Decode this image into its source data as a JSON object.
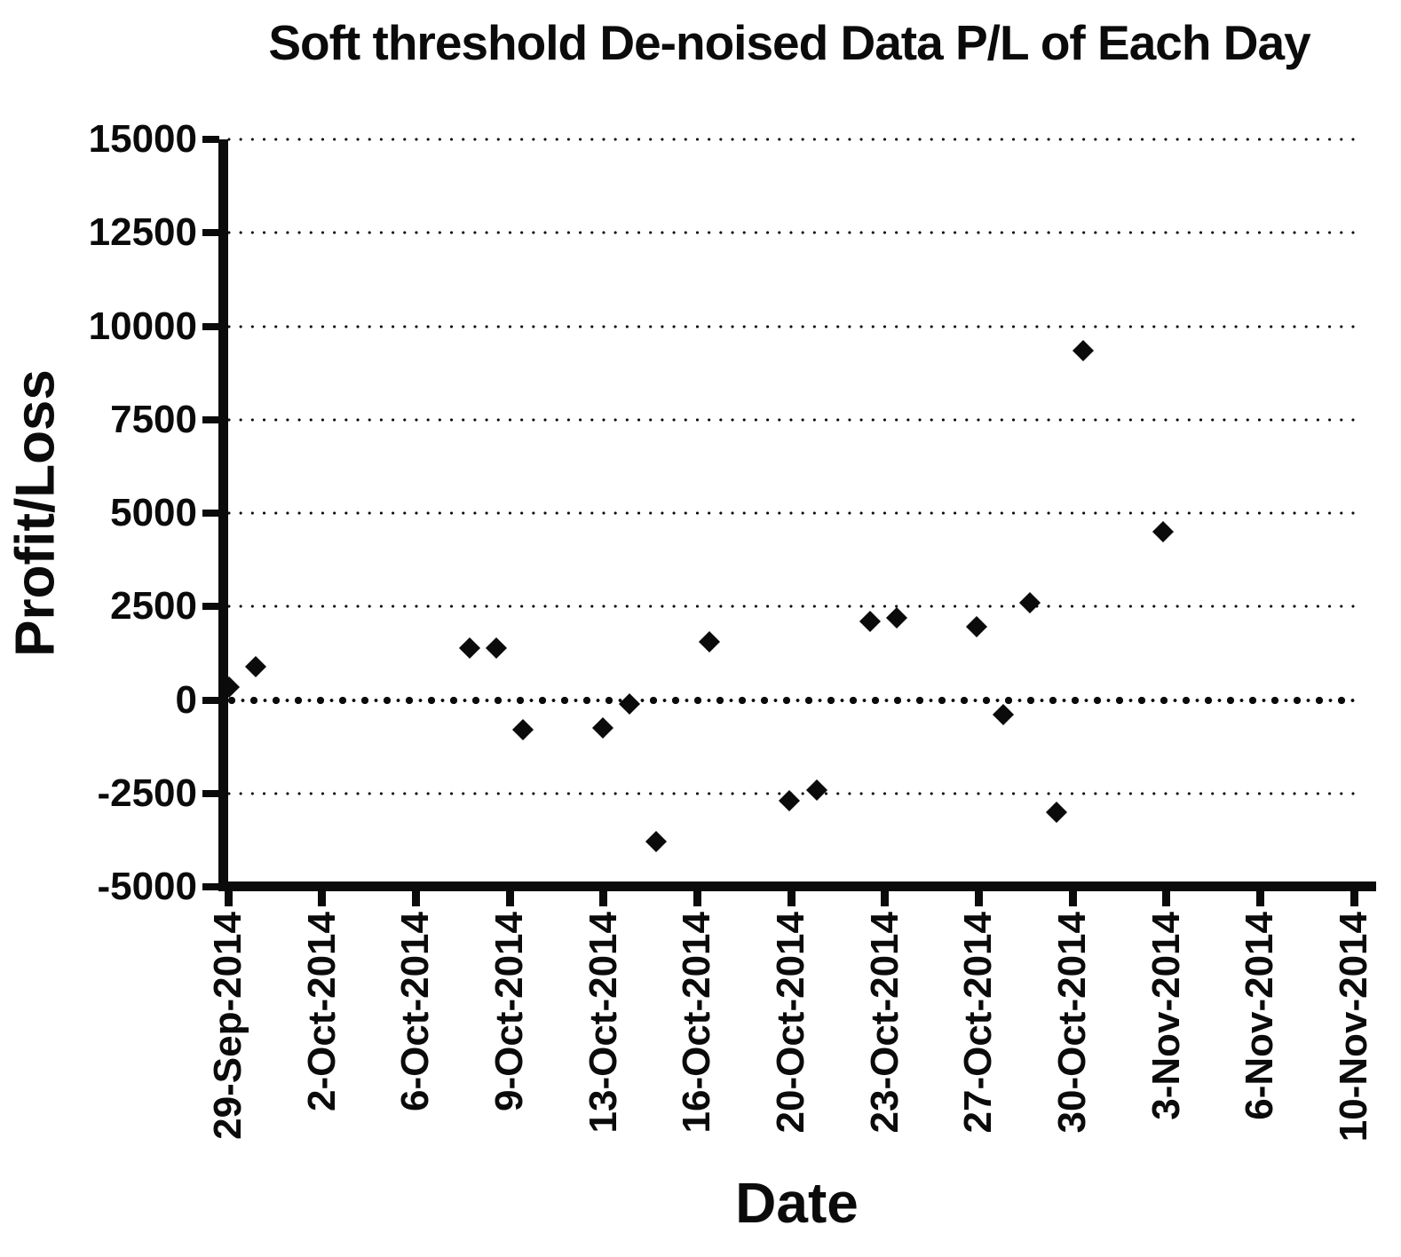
{
  "styles": {
    "ink": "#0b0b0b",
    "background": "#ffffff"
  },
  "chart_data": {
    "type": "scatter",
    "title": "Soft threshold De-noised Data P/L of Each Day",
    "xlabel": "Date",
    "ylabel": "Profit/Loss",
    "ylim": [
      -5000,
      15000
    ],
    "y_tick_step": 2500,
    "y_tick_labels": [
      "15000",
      "12500",
      "10000",
      "7500",
      "5000",
      "2500",
      "0",
      "-2500",
      "-5000"
    ],
    "y_tick_values": [
      15000,
      12500,
      10000,
      7500,
      5000,
      2500,
      0,
      -2500,
      -5000
    ],
    "x_tick_labels": [
      "29-Sep-2014",
      "2-Oct-2014",
      "6-Oct-2014",
      "9-Oct-2014",
      "13-Oct-2014",
      "16-Oct-2014",
      "20-Oct-2014",
      "23-Oct-2014",
      "27-Oct-2014",
      "30-Oct-2014",
      "3-Nov-2014",
      "6-Nov-2014",
      "10-Nov-2014"
    ],
    "grid": "dotted horizontal gridlines, zero line emphasized with larger dots",
    "legend": "none",
    "marker": "filled black diamond",
    "points": [
      {
        "date": "29-Sep-2014",
        "day_offset": 0,
        "value": 350
      },
      {
        "date": "30-Sep-2014",
        "day_offset": 1,
        "value": 900
      },
      {
        "date": "8-Oct-2014",
        "day_offset": 9,
        "value": 1400
      },
      {
        "date": "9-Oct-2014",
        "day_offset": 10,
        "value": 1400
      },
      {
        "date": "10-Oct-2014",
        "day_offset": 11,
        "value": -800
      },
      {
        "date": "13-Oct-2014",
        "day_offset": 14,
        "value": -750
      },
      {
        "date": "14-Oct-2014",
        "day_offset": 15,
        "value": -100
      },
      {
        "date": "15-Oct-2014",
        "day_offset": 16,
        "value": -3800
      },
      {
        "date": "17-Oct-2014",
        "day_offset": 18,
        "value": 1550
      },
      {
        "date": "20-Oct-2014",
        "day_offset": 21,
        "value": -2700
      },
      {
        "date": "21-Oct-2014",
        "day_offset": 22,
        "value": -2400
      },
      {
        "date": "23-Oct-2014",
        "day_offset": 24,
        "value": 2100
      },
      {
        "date": "24-Oct-2014",
        "day_offset": 25,
        "value": 2200
      },
      {
        "date": "27-Oct-2014",
        "day_offset": 28,
        "value": 1950
      },
      {
        "date": "28-Oct-2014",
        "day_offset": 29,
        "value": -400
      },
      {
        "date": "29-Oct-2014",
        "day_offset": 30,
        "value": 2600
      },
      {
        "date": "30-Oct-2014",
        "day_offset": 31,
        "value": -3000
      },
      {
        "date": "31-Oct-2014",
        "day_offset": 32,
        "value": 9350
      },
      {
        "date": "3-Nov-2014",
        "day_offset": 35,
        "value": 4500
      }
    ]
  }
}
